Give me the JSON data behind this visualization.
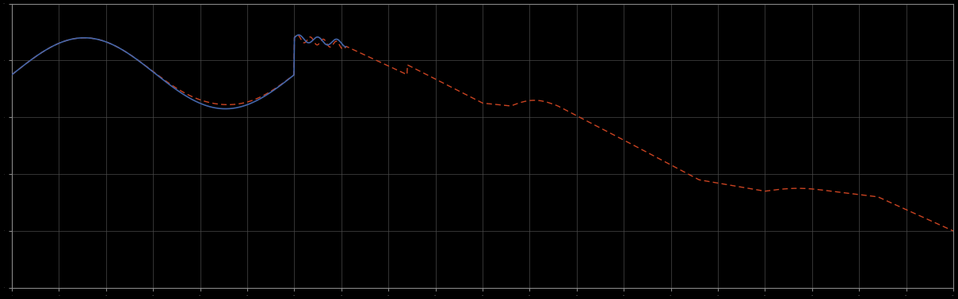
{
  "background_color": "#000000",
  "axes_bg_color": "#000000",
  "grid_color": "#4a4a4a",
  "line_blue_color": "#4466aa",
  "line_red_color": "#cc4422",
  "figsize": [
    12.09,
    3.78
  ],
  "dpi": 100,
  "xlim": [
    0,
    1000
  ],
  "ylim": [
    0,
    10
  ],
  "xticks_count": 21,
  "yticks_count": 6,
  "spine_color": "#888888",
  "tick_color": "#888888"
}
